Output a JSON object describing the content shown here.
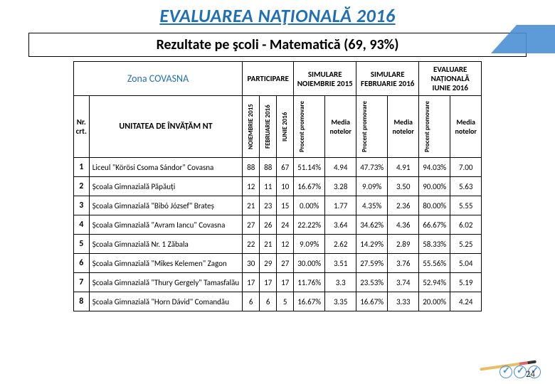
{
  "title": "EVALUAREA NAŢIONALĂ 2016",
  "subtitle": "Rezultate pe şcoli -  Matematică (69, 93%)",
  "zone": "Zona   COVASNA",
  "headers": {
    "participare": "PARTICIPARE",
    "sim_nov": "SIMULARE NOIEMBRIE 2015",
    "sim_feb": "SIMULARE FEBRUARIE 2016",
    "eval": "EVALUARE NAȚIONALĂ",
    "eval_sub": "IUNIE 2016",
    "nr": "Nr. crt.",
    "unit": "UNITATEA DE ÎNVĂȚĂM NT",
    "nov15": "NOIEMBRIE 2015",
    "feb16": "FEBRUARIE 2016",
    "iun16": "IUNIE 2016",
    "procent": "Procent promovare",
    "media": "Media notelor"
  },
  "rows": [
    {
      "n": "1",
      "u": "Liceul \"Körösi Csoma Sándor\" Covasna",
      "p": [
        "88",
        "88",
        "67"
      ],
      "s1": [
        "51.14%",
        "4.94"
      ],
      "s2": [
        "47.73%",
        "4.91"
      ],
      "e": [
        "94.03%",
        "7.00"
      ]
    },
    {
      "n": "2",
      "u": "Școala Gimnazială Păpăuți",
      "p": [
        "12",
        "11",
        "10"
      ],
      "s1": [
        "16.67%",
        "3.28"
      ],
      "s2": [
        "9.09%",
        "3.50"
      ],
      "e": [
        "90.00%",
        "5.63"
      ]
    },
    {
      "n": "3",
      "u": "Școala Gimnazială \"Bibó József\" Brateș",
      "p": [
        "21",
        "23",
        "15"
      ],
      "s1": [
        "0.00%",
        "1.77"
      ],
      "s2": [
        "4.35%",
        "2.36"
      ],
      "e": [
        "80.00%",
        "5.55"
      ]
    },
    {
      "n": "4",
      "u": "Școala Gimnazială \"Avram Iancu\" Covasna",
      "p": [
        "27",
        "26",
        "24"
      ],
      "s1": [
        "22.22%",
        "3.64"
      ],
      "s2": [
        "34.62%",
        "4.36"
      ],
      "e": [
        "66.67%",
        "6.02"
      ]
    },
    {
      "n": "5",
      "u": "Școala Gimnazială Nr. 1 Zăbala",
      "p": [
        "22",
        "21",
        "12"
      ],
      "s1": [
        "9.09%",
        "2.62"
      ],
      "s2": [
        "14.29%",
        "2.89"
      ],
      "e": [
        "58.33%",
        "5.25"
      ]
    },
    {
      "n": "6",
      "u": "Școala Gimnazială \"Mikes Kelemen\" Zagon",
      "p": [
        "30",
        "29",
        "27"
      ],
      "s1": [
        "30.00%",
        "3.51"
      ],
      "s2": [
        "27.59%",
        "3.76"
      ],
      "e": [
        "55.56%",
        "5.04"
      ]
    },
    {
      "n": "7",
      "u": "Școala Gimnazială \"Thury Gergely\" Tamasfalău",
      "p": [
        "17",
        "17",
        "17"
      ],
      "s1": [
        "11.76%",
        "3.3"
      ],
      "s2": [
        "23.53%",
        "3.74"
      ],
      "e": [
        "52.94%",
        "5.19"
      ]
    },
    {
      "n": "8",
      "u": "Școala Gimnazială \"Horn Dávid\" Comandău",
      "p": [
        "6",
        "6",
        "5"
      ],
      "s1": [
        "16.67%",
        "3.35"
      ],
      "s2": [
        "16.67%",
        "3.33"
      ],
      "e": [
        "20.00%",
        "4.24"
      ]
    }
  ],
  "page": "24"
}
